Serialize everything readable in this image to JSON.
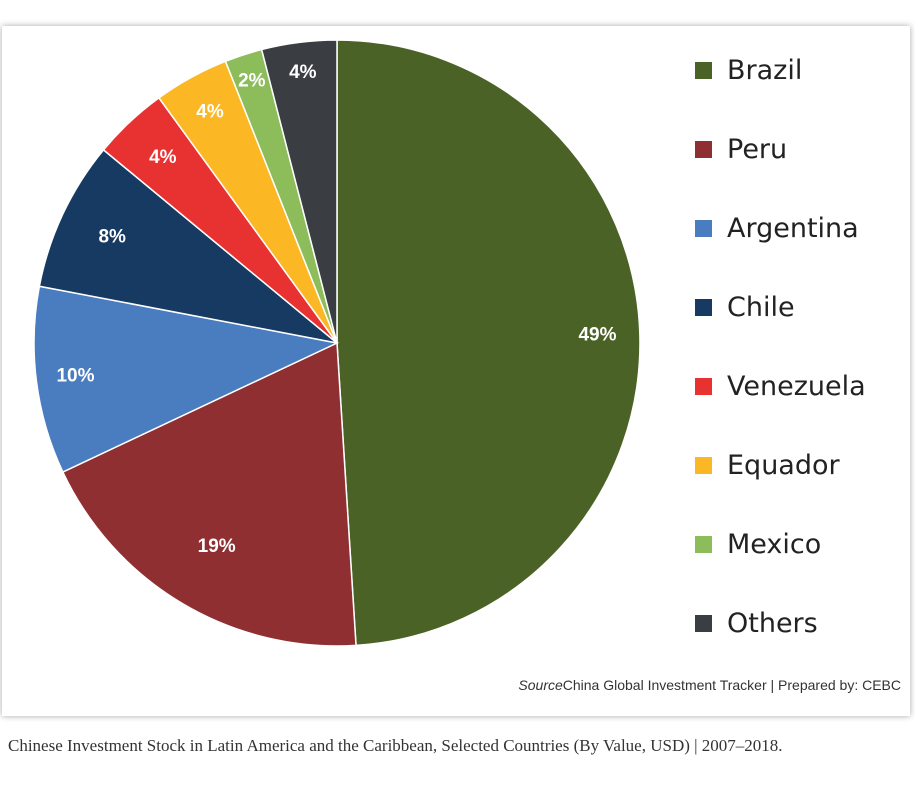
{
  "chart_data": {
    "type": "pie",
    "categories": [
      "Brazil",
      "Peru",
      "Argentina",
      "Chile",
      "Venezuela",
      "Equador",
      "Mexico",
      "Others"
    ],
    "values": [
      49,
      19,
      10,
      8,
      4,
      4,
      2,
      4
    ],
    "labels": [
      "49%",
      "19%",
      "10%",
      "8%",
      "4%",
      "4%",
      "2%",
      "4%"
    ],
    "colors": [
      "#4b6227",
      "#8f2f31",
      "#4a7cc0",
      "#173a63",
      "#e83131",
      "#fbb824",
      "#8cbd5a",
      "#3a3e42"
    ],
    "legend_placement": "right",
    "start_angle_deg": 0,
    "direction": "clockwise"
  },
  "source": {
    "prefix": "Source",
    "text": "China Global Investment Tracker | Prepared by: CEBC"
  },
  "caption": "Chinese Investment Stock in Latin America and the Caribbean, Selected Countries (By Value, USD) | 2007–2018."
}
